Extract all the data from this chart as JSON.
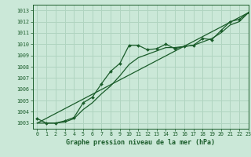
{
  "title": "Graphe pression niveau de la mer (hPa)",
  "bg_color": "#cbe8d8",
  "grid_color": "#b0d4c0",
  "line_color": "#1a5c2a",
  "marker_color": "#1a5c2a",
  "xlim": [
    -0.5,
    23
  ],
  "ylim": [
    1002.5,
    1013.5
  ],
  "yticks": [
    1003,
    1004,
    1005,
    1006,
    1007,
    1008,
    1009,
    1010,
    1011,
    1012,
    1013
  ],
  "xticks": [
    0,
    1,
    2,
    3,
    4,
    5,
    6,
    7,
    8,
    9,
    10,
    11,
    12,
    13,
    14,
    15,
    16,
    17,
    18,
    19,
    20,
    21,
    22,
    23
  ],
  "series1_x": [
    0,
    1,
    2,
    3,
    4,
    5,
    6,
    7,
    8,
    9,
    10,
    11,
    12,
    13,
    14,
    15,
    16,
    17,
    18,
    19,
    20,
    21,
    22,
    23
  ],
  "series1_y": [
    1003.4,
    1003.0,
    1003.0,
    1003.2,
    1003.5,
    1004.8,
    1005.3,
    1006.5,
    1007.6,
    1008.3,
    1009.9,
    1009.9,
    1009.5,
    1009.6,
    1010.0,
    1009.6,
    1009.8,
    1009.9,
    1010.5,
    1010.4,
    1011.2,
    1012.0,
    1012.2,
    1012.8
  ],
  "series2_x": [
    0,
    23
  ],
  "series2_y": [
    1003.0,
    1012.8
  ],
  "series3_x": [
    0,
    1,
    2,
    3,
    4,
    5,
    6,
    7,
    8,
    9,
    10,
    11,
    12,
    13,
    14,
    15,
    16,
    17,
    18,
    19,
    20,
    21,
    22,
    23
  ],
  "series3_y": [
    1003.0,
    1003.0,
    1003.0,
    1003.1,
    1003.4,
    1004.2,
    1004.8,
    1005.6,
    1006.3,
    1007.2,
    1008.2,
    1008.8,
    1009.1,
    1009.4,
    1009.7,
    1009.7,
    1009.8,
    1009.9,
    1010.2,
    1010.5,
    1011.0,
    1011.7,
    1012.0,
    1012.8
  ],
  "label_fontsize": 5.0,
  "tick_fontsize": 4.8,
  "xlabel_fontsize": 6.0
}
